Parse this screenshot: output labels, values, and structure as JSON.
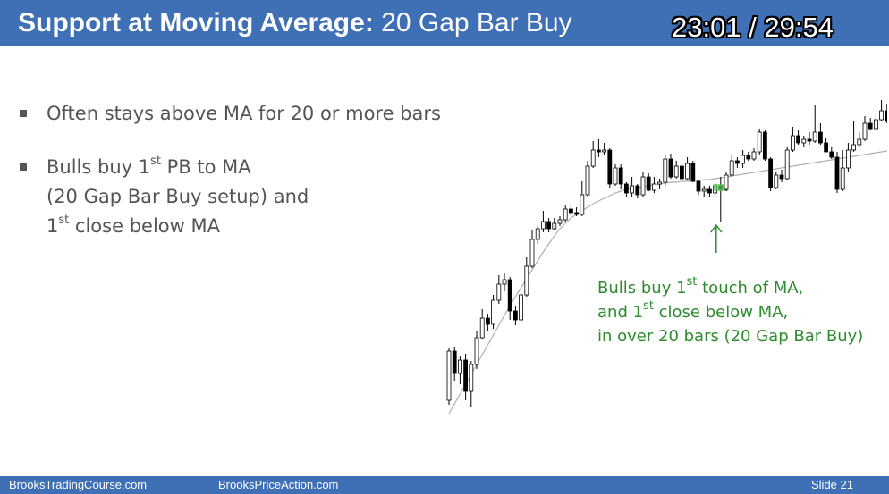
{
  "header": {
    "title_bold": "Support at Moving Average:",
    "title_rest": "20 Gap Bar Buy",
    "video_time": "23:01 / 29:54"
  },
  "bullets": [
    {
      "lines": [
        {
          "pre": "Often stays above MA for 20 or more bars"
        }
      ]
    },
    {
      "lines": [
        {
          "pre": "Bulls buy 1",
          "sup": "st",
          "post": " PB to MA"
        },
        {
          "pre": "(20 Gap Bar Buy setup) and"
        },
        {
          "pre": "1",
          "sup": "st",
          "post": " close below MA"
        }
      ]
    }
  ],
  "annotation": {
    "line1_pre": "Bulls buy 1",
    "line1_sup": "st",
    "line1_post": " touch of MA,",
    "line2_pre": "and 1",
    "line2_sup": "st",
    "line2_post": " close below MA,",
    "line3": "in over 20 bars (20 Gap Bar Buy)",
    "color": "#2e8b2e"
  },
  "footer": {
    "left": "BrooksTradingCourse.com",
    "center": "BrooksPriceAction.com",
    "slide": "Slide  21"
  },
  "colors": {
    "header": "#3f6fb4",
    "bar_bull": "#ffffff",
    "bar_bear": "#000000",
    "ma": "#b0b0b0",
    "highlight": "#5cc55c"
  },
  "chart_data": {
    "type": "candlestick",
    "x_axis": "none",
    "y_axis": "none",
    "grid": false,
    "bars": [
      [
        340,
        285,
        345,
        282
      ],
      [
        285,
        310,
        318,
        280
      ],
      [
        310,
        295,
        322,
        290
      ],
      [
        295,
        330,
        340,
        288
      ],
      [
        330,
        300,
        348,
        296
      ],
      [
        300,
        270,
        305,
        262
      ],
      [
        270,
        248,
        272,
        238
      ],
      [
        248,
        255,
        262,
        244
      ],
      [
        255,
        228,
        260,
        222
      ],
      [
        228,
        210,
        232,
        200
      ],
      [
        210,
        205,
        218,
        198
      ],
      [
        205,
        240,
        250,
        202
      ],
      [
        240,
        250,
        256,
        235
      ],
      [
        250,
        222,
        252,
        218
      ],
      [
        222,
        190,
        225,
        180
      ],
      [
        190,
        160,
        192,
        150
      ],
      [
        160,
        148,
        165,
        145
      ],
      [
        148,
        140,
        152,
        128
      ],
      [
        140,
        148,
        152,
        136
      ],
      [
        148,
        142,
        150,
        136
      ],
      [
        142,
        138,
        145,
        134
      ],
      [
        138,
        126,
        140,
        122
      ],
      [
        126,
        130,
        134,
        120
      ],
      [
        130,
        132,
        134,
        124
      ],
      [
        132,
        110,
        134,
        95
      ],
      [
        110,
        78,
        112,
        72
      ],
      [
        78,
        60,
        80,
        50
      ],
      [
        60,
        62,
        68,
        48
      ],
      [
        62,
        60,
        66,
        52
      ],
      [
        60,
        98,
        102,
        58
      ],
      [
        98,
        80,
        100,
        76
      ],
      [
        80,
        98,
        104,
        76
      ],
      [
        98,
        108,
        112,
        96
      ],
      [
        108,
        100,
        112,
        90
      ],
      [
        100,
        110,
        114,
        98
      ],
      [
        110,
        90,
        112,
        84
      ],
      [
        90,
        105,
        106,
        86
      ],
      [
        105,
        98,
        108,
        90
      ],
      [
        98,
        96,
        104,
        92
      ],
      [
        96,
        70,
        100,
        66
      ],
      [
        70,
        90,
        92,
        64
      ],
      [
        90,
        78,
        92,
        72
      ],
      [
        78,
        92,
        94,
        74
      ],
      [
        92,
        75,
        94,
        68
      ],
      [
        75,
        95,
        96,
        72
      ],
      [
        95,
        106,
        110,
        94
      ],
      [
        106,
        104,
        112,
        100
      ],
      [
        104,
        108,
        112,
        100
      ],
      [
        108,
        100,
        112,
        96
      ],
      [
        100,
        104,
        140,
        90
      ],
      [
        104,
        88,
        106,
        84
      ],
      [
        88,
        72,
        90,
        66
      ],
      [
        72,
        75,
        80,
        68
      ],
      [
        75,
        66,
        80,
        60
      ],
      [
        66,
        70,
        72,
        62
      ],
      [
        70,
        62,
        72,
        58
      ],
      [
        62,
        40,
        66,
        36
      ],
      [
        40,
        70,
        72,
        38
      ],
      [
        70,
        102,
        106,
        68
      ],
      [
        102,
        88,
        104,
        84
      ],
      [
        88,
        92,
        96,
        82
      ],
      [
        92,
        60,
        94,
        56
      ],
      [
        60,
        44,
        62,
        34
      ],
      [
        44,
        52,
        54,
        38
      ],
      [
        52,
        48,
        56,
        44
      ],
      [
        48,
        50,
        54,
        40
      ],
      [
        50,
        40,
        52,
        10
      ],
      [
        40,
        52,
        54,
        30
      ],
      [
        52,
        62,
        56,
        46
      ],
      [
        62,
        68,
        70,
        56
      ],
      [
        68,
        104,
        108,
        62
      ],
      [
        104,
        80,
        106,
        60
      ],
      [
        80,
        60,
        84,
        52
      ],
      [
        60,
        54,
        62,
        28
      ],
      [
        54,
        48,
        56,
        40
      ],
      [
        48,
        30,
        50,
        22
      ],
      [
        30,
        36,
        38,
        24
      ],
      [
        36,
        26,
        38,
        18
      ],
      [
        26,
        16,
        28,
        4
      ],
      [
        16,
        28,
        30,
        8
      ]
    ],
    "ma": [
      355,
      344,
      333,
      322,
      311,
      300,
      289,
      278,
      267,
      256,
      245,
      234,
      224,
      214,
      204,
      194,
      184,
      174,
      165,
      156,
      148,
      142,
      136,
      132,
      128,
      124,
      120,
      117,
      114,
      111,
      108,
      106,
      104,
      103,
      102,
      101,
      100,
      99,
      98,
      97,
      96,
      96,
      95,
      95,
      94,
      94,
      93,
      93,
      92,
      91,
      90,
      89,
      88,
      87,
      86,
      85,
      84,
      83,
      82,
      81,
      80,
      79,
      78,
      77,
      76,
      75,
      74,
      73,
      72,
      71,
      70,
      69,
      68,
      67,
      66,
      65,
      64,
      63,
      62,
      61
    ],
    "highlight_bars": [
      49
    ]
  }
}
